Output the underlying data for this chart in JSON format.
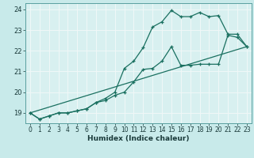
{
  "title": "",
  "xlabel": "Humidex (Indice chaleur)",
  "ylabel": "",
  "bg_color": "#c8eaea",
  "plot_bg_color": "#d8f0f0",
  "grid_color": "#f0f8f8",
  "line_color": "#1a7060",
  "xlim": [
    -0.5,
    23.5
  ],
  "ylim": [
    18.5,
    24.3
  ],
  "xticks": [
    0,
    1,
    2,
    3,
    4,
    5,
    6,
    7,
    8,
    9,
    10,
    11,
    12,
    13,
    14,
    15,
    16,
    17,
    18,
    19,
    20,
    21,
    22,
    23
  ],
  "yticks": [
    19,
    20,
    21,
    22,
    23,
    24
  ],
  "line1_x": [
    0,
    1,
    2,
    3,
    4,
    5,
    6,
    7,
    8,
    9,
    10,
    11,
    12,
    13,
    14,
    15,
    16,
    17,
    18,
    19,
    20,
    21,
    22,
    23
  ],
  "line1_y": [
    19.0,
    18.7,
    18.85,
    19.0,
    19.0,
    19.1,
    19.2,
    19.5,
    19.6,
    19.85,
    20.0,
    20.5,
    21.1,
    21.15,
    21.5,
    22.2,
    21.3,
    21.3,
    21.35,
    21.35,
    21.35,
    22.75,
    22.65,
    22.2
  ],
  "line2_x": [
    0,
    1,
    2,
    3,
    4,
    5,
    6,
    7,
    8,
    9,
    10,
    11,
    12,
    13,
    14,
    15,
    16,
    17,
    18,
    19,
    20,
    21,
    22,
    23
  ],
  "line2_y": [
    19.0,
    18.7,
    18.85,
    19.0,
    19.0,
    19.1,
    19.2,
    19.5,
    19.7,
    20.0,
    21.15,
    21.5,
    22.15,
    23.15,
    23.4,
    23.95,
    23.65,
    23.65,
    23.85,
    23.65,
    23.7,
    22.8,
    22.8,
    22.2
  ],
  "line3_x": [
    0,
    23
  ],
  "line3_y": [
    19.0,
    22.2
  ]
}
